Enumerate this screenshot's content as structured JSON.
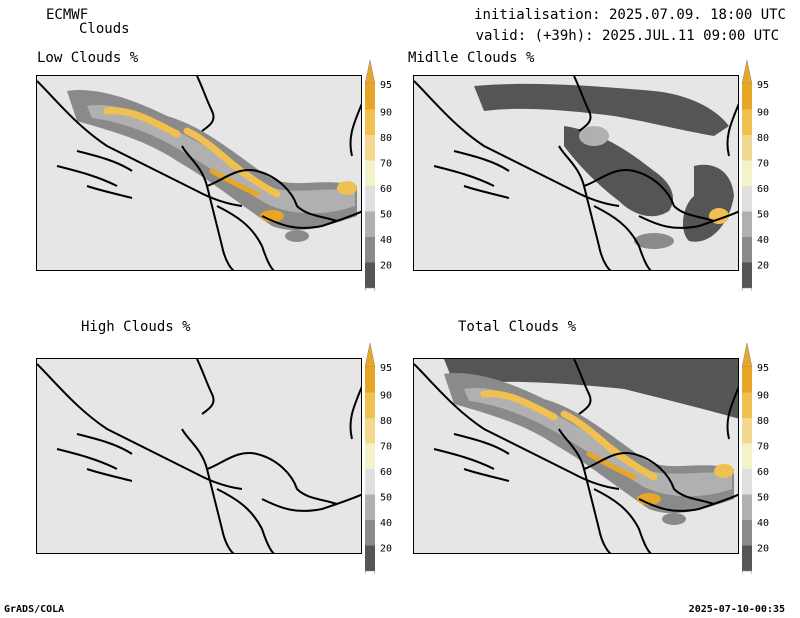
{
  "header": {
    "model": "ECMWF",
    "product": "Clouds",
    "initialisation": "initialisation: 2025.07.09. 18:00 UTC",
    "valid": "valid: (+39h): 2025.JUL.11 09:00 UTC"
  },
  "panels": [
    {
      "id": "low",
      "title": "Low Clouds %"
    },
    {
      "id": "middle",
      "title": "Midlle Clouds %"
    },
    {
      "id": "high",
      "title": "High Clouds %"
    },
    {
      "id": "total",
      "title": "Total Clouds %"
    }
  ],
  "colorbar": {
    "labels": [
      "95",
      "90",
      "80",
      "70",
      "60",
      "50",
      "40",
      "20"
    ],
    "colors": [
      "#e8a628",
      "#f0c050",
      "#f3d98f",
      "#f3f3c8",
      "#e0e0e0",
      "#b0b0b0",
      "#8a8a8a",
      "#555555"
    ]
  },
  "footer": {
    "left": "GrADS/COLA",
    "right": "2025-07-10-00:35"
  }
}
